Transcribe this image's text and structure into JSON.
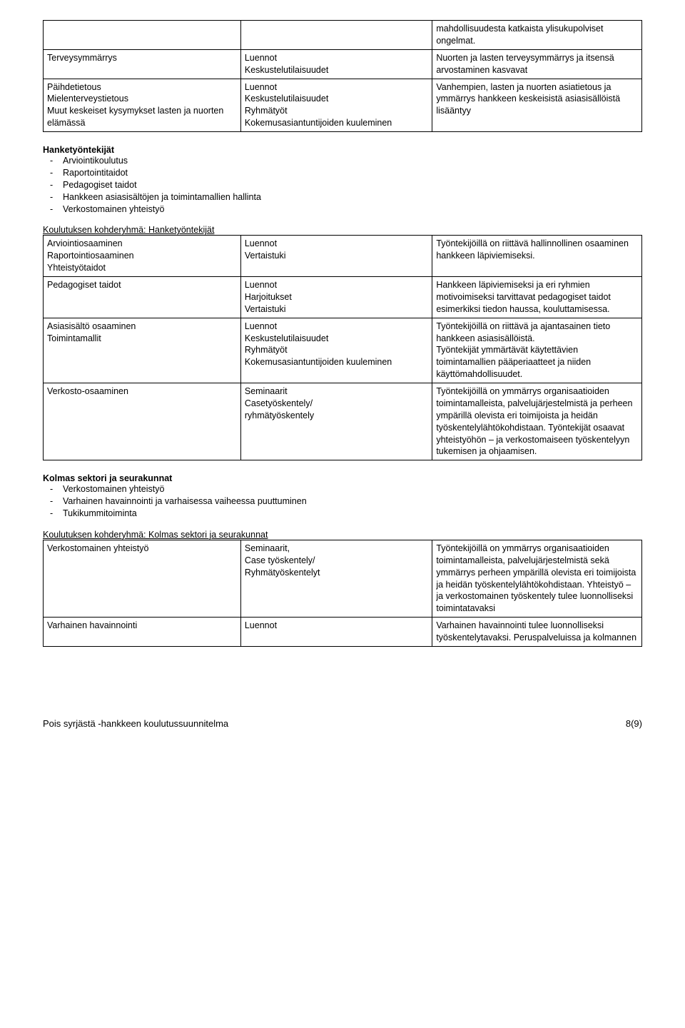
{
  "table1": {
    "rows": [
      {
        "c1": "",
        "c2": "",
        "c3": "mahdollisuudesta katkaista ylisukupolviset ongelmat."
      },
      {
        "c1": "Terveysymmärrys",
        "c2": "Luennot\nKeskustelutilaisuudet",
        "c3": "Nuorten ja lasten terveysymmärrys ja itsensä arvostaminen kasvavat"
      },
      {
        "c1": "Päihdetietous\nMielenterveystietous\nMuut keskeiset kysymykset lasten ja nuorten elämässä",
        "c2": "Luennot\nKeskustelutilaisuudet\nRyhmätyöt\nKokemusasiantuntijoiden kuuleminen",
        "c3": "Vanhempien, lasten ja nuorten asiatietous ja ymmärrys hankkeen keskeisistä asiasisällöistä lisääntyy"
      }
    ]
  },
  "section1": {
    "title": "Hanketyöntekijät",
    "bullets": [
      "Arviointikoulutus",
      "Raportointitaidot",
      "Pedagogiset taidot",
      "Hankkeen asiasisältöjen ja toimintamallien hallinta",
      "Verkostomainen yhteistyö"
    ]
  },
  "table2title": "Koulutuksen kohderyhmä: Hanketyöntekijät",
  "table2": {
    "rows": [
      {
        "c1": "Arviointiosaaminen\nRaportointiosaaminen\nYhteistyötaidot",
        "c2": "Luennot\nVertaistuki",
        "c3": "Työntekijöillä on riittävä hallinnollinen osaaminen hankkeen läpiviemiseksi."
      },
      {
        "c1": "Pedagogiset taidot",
        "c2": "Luennot\nHarjoitukset\nVertaistuki",
        "c3": "Hankkeen läpiviemiseksi ja eri ryhmien motivoimiseksi tarvittavat pedagogiset taidot esimerkiksi tiedon haussa, kouluttamisessa."
      },
      {
        "c1": "Asiasisältö osaaminen\nToimintamallit",
        "c2": "Luennot\nKeskustelutilaisuudet\nRyhmätyöt\nKokemusasiantuntijoiden kuuleminen",
        "c3": "Työntekijöillä on riittävä ja ajantasainen tieto hankkeen asiasisällöistä.\nTyöntekijät ymmärtävät käytettävien toimintamallien pääperiaatteet ja niiden käyttömahdollisuudet."
      },
      {
        "c1": "Verkosto-osaaminen",
        "c2": "Seminaarit\nCasetyöskentely/\nryhmätyöskentely",
        "c3": "Työntekijöillä on ymmärrys organisaatioiden toimintamalleista, palvelujärjestelmistä ja perheen ympärillä olevista eri toimijoista ja heidän työskentelylähtökohdistaan. Työntekijät osaavat yhteistyöhön – ja verkostomaiseen työskentelyyn tukemisen ja ohjaamisen."
      }
    ]
  },
  "section2": {
    "title": "Kolmas sektori ja seurakunnat",
    "bullets": [
      "Verkostomainen yhteistyö",
      "Varhainen havainnointi ja varhaisessa vaiheessa puuttuminen",
      "Tukikummitoiminta"
    ]
  },
  "table3title": "Koulutuksen kohderyhmä: Kolmas sektori ja seurakunnat",
  "table3": {
    "rows": [
      {
        "c1": "Verkostomainen yhteistyö",
        "c2": "Seminaarit,\nCase työskentely/\nRyhmätyöskentelyt",
        "c3": "Työntekijöillä on ymmärrys organisaatioiden toimintamalleista, palvelujärjestelmistä sekä ymmärrys perheen ympärillä olevista eri toimijoista ja heidän työskentelylähtökohdistaan. Yhteistyö – ja verkostomainen työskentely tulee luonnolliseksi toimintatavaksi"
      },
      {
        "c1": "Varhainen havainnointi",
        "c2": "Luennot",
        "c3": "Varhainen havainnointi tulee luonnolliseksi työskentelytavaksi. Peruspalveluissa ja kolmannen"
      }
    ]
  },
  "footer": {
    "left": "Pois syrjästä -hankkeen koulutussuunnitelma",
    "right": "8(9)"
  }
}
